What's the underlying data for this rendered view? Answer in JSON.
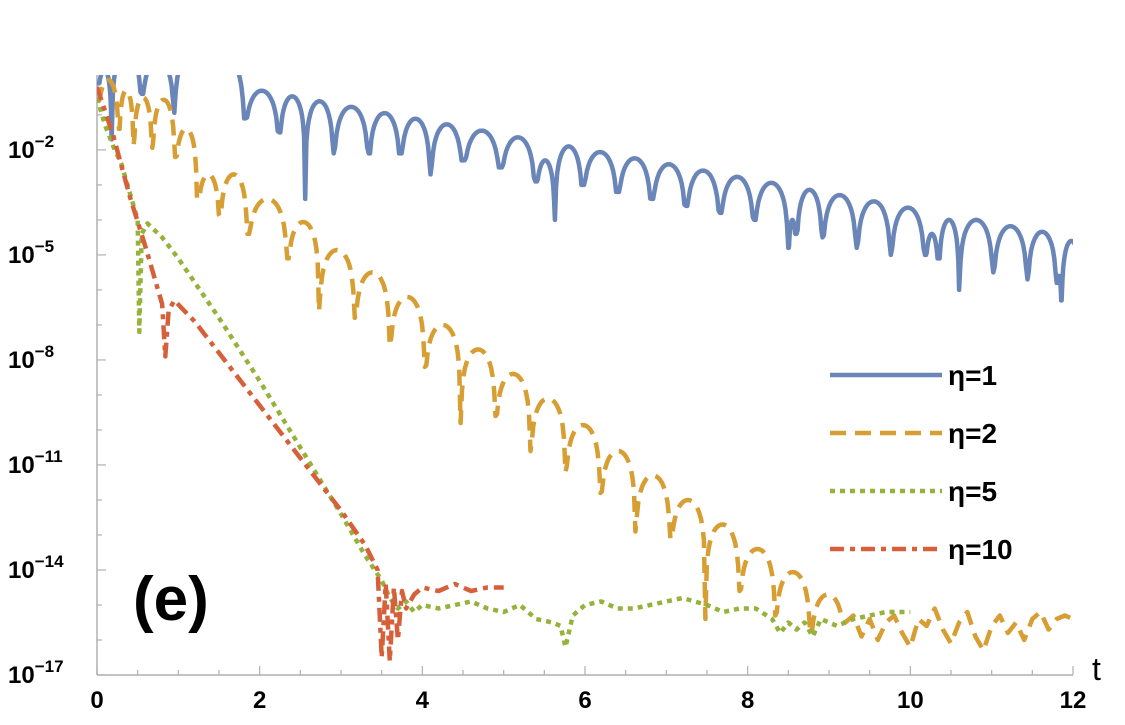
{
  "chart_data": {
    "type": "line",
    "panel_label": "(e)",
    "xlabel": "t",
    "ylabel": "",
    "xlim": [
      0,
      12
    ],
    "ylim_log10": [
      -17,
      0.14
    ],
    "yscale": "log",
    "x_ticks": [
      "0",
      "2",
      "4",
      "6",
      "8",
      "10",
      "12"
    ],
    "y_ticks": [
      {
        "base": "10",
        "exp": "−2",
        "log10": -2
      },
      {
        "base": "10",
        "exp": "−5",
        "log10": -5
      },
      {
        "base": "10",
        "exp": "−8",
        "log10": -8
      },
      {
        "base": "10",
        "exp": "−11",
        "log10": -11
      },
      {
        "base": "10",
        "exp": "−14",
        "log10": -14
      },
      {
        "base": "10",
        "exp": "−17",
        "log10": -17
      }
    ],
    "legend_position": "right",
    "series": [
      {
        "name": "η=1",
        "color": "#6a86b8",
        "style": "solid",
        "arcs": {
          "dips": [
            0,
            0.18,
            0.55,
            0.95,
            1.38,
            1.81,
            2.24,
            2.56,
            2.91,
            3.34,
            3.73,
            4.1,
            4.5,
            4.96,
            5.39,
            5.63,
            5.97,
            6.4,
            6.82,
            7.24,
            7.66,
            8.08,
            8.5,
            8.6,
            8.92,
            9.34,
            9.76,
            10.18,
            10.35,
            10.6,
            11.02,
            11.44,
            11.8,
            11.86,
            12.1
          ],
          "dip_values": [
            -0.1,
            -1.7,
            -0.4,
            -0.94,
            0.5,
            -1.1,
            -1.5,
            -3.4,
            -2.1,
            -2.1,
            -2.1,
            -2.7,
            -2.3,
            -2.5,
            -2.9,
            -4.0,
            -3.0,
            -3.2,
            -3.4,
            -3.6,
            -3.8,
            -4.0,
            -4.8,
            -4.4,
            -4.5,
            -4.8,
            -5.0,
            -5.0,
            -5.1,
            -6.0,
            -5.5,
            -5.7,
            -5.8,
            -6.3,
            -5.5
          ],
          "peaks": [
            0.3,
            0.8,
            0.6,
            0.8,
            0.6,
            -0.31,
            -0.47,
            -0.61,
            -0.77,
            -0.95,
            -1.11,
            -1.27,
            -1.45,
            -1.64,
            -2.3,
            -1.9,
            -2.06,
            -2.24,
            -2.41,
            -2.59,
            -2.77,
            -2.94,
            -4.0,
            -3.14,
            -3.29,
            -3.47,
            -3.65,
            -4.4,
            -4.0,
            -4.0,
            -4.18,
            -4.34,
            -5.6,
            -4.6
          ]
        },
        "tail": []
      },
      {
        "name": "η=2",
        "color": "#d69e33",
        "style": "dashed",
        "arcs": {
          "dips": [
            0,
            0.27,
            0.45,
            0.68,
            0.96,
            1.23,
            1.51,
            1.85,
            2.34,
            2.73,
            3.17,
            3.6,
            4.03,
            4.47,
            4.9,
            5.33,
            5.76,
            6.19,
            6.62,
            7.05,
            7.48,
            7.9,
            8.34,
            8.77,
            9.2
          ],
          "dip_values": [
            -0.6,
            -1.4,
            -1.86,
            -1.94,
            -2.2,
            -3.4,
            -3.9,
            -4.4,
            -5.1,
            -6.6,
            -6.8,
            -7.6,
            -8.2,
            -9.8,
            -9.6,
            -10.6,
            -11.2,
            -11.8,
            -12.9,
            -13.1,
            -15.4,
            -14.6,
            -15.3,
            -15.8,
            -15.5
          ],
          "peaks": [
            0.0,
            -0.3,
            -0.5,
            -0.57,
            -1.4,
            -2.7,
            -2.7,
            -3.4,
            -4.06,
            -4.86,
            -5.5,
            -6.2,
            -7.0,
            -7.7,
            -8.4,
            -9.1,
            -9.86,
            -10.6,
            -11.3,
            -12.0,
            -12.7,
            -13.4,
            -14.06,
            -14.7
          ]
        },
        "tail": [
          [
            9.3,
            -15.3
          ],
          [
            9.4,
            -15.9
          ],
          [
            9.5,
            -15.4
          ],
          [
            9.6,
            -16.0
          ],
          [
            9.7,
            -15.5
          ],
          [
            9.8,
            -15.3
          ],
          [
            9.9,
            -15.8
          ],
          [
            10.0,
            -16.2
          ],
          [
            10.1,
            -15.4
          ],
          [
            10.2,
            -15.6
          ],
          [
            10.3,
            -15.1
          ],
          [
            10.4,
            -15.7
          ],
          [
            10.5,
            -16.1
          ],
          [
            10.6,
            -15.5
          ],
          [
            10.7,
            -15.2
          ],
          [
            10.8,
            -15.9
          ],
          [
            10.9,
            -16.3
          ],
          [
            11.0,
            -15.6
          ],
          [
            11.1,
            -15.3
          ],
          [
            11.2,
            -15.8
          ],
          [
            11.3,
            -15.5
          ],
          [
            11.4,
            -16.0
          ],
          [
            11.5,
            -15.4
          ],
          [
            11.6,
            -15.2
          ],
          [
            11.7,
            -15.7
          ],
          [
            11.8,
            -15.4
          ],
          [
            11.9,
            -15.3
          ],
          [
            12.0,
            -15.4
          ]
        ]
      },
      {
        "name": "η=5",
        "color": "#95b23a",
        "style": "dotted",
        "points": [
          [
            0,
            -0.5
          ],
          [
            0.1,
            -1.3
          ],
          [
            0.2,
            -1.9
          ],
          [
            0.3,
            -2.4
          ],
          [
            0.4,
            -3.2
          ],
          [
            0.5,
            -4.0
          ],
          [
            0.52,
            -7.2
          ],
          [
            0.55,
            -4.4
          ],
          [
            0.62,
            -4.1
          ],
          [
            0.8,
            -4.5
          ],
          [
            1.0,
            -5.1
          ],
          [
            1.5,
            -6.8
          ],
          [
            2.0,
            -8.6
          ],
          [
            2.5,
            -10.5
          ],
          [
            3.0,
            -12.4
          ],
          [
            3.3,
            -13.6
          ],
          [
            3.5,
            -14.3
          ],
          [
            3.6,
            -14.8
          ],
          [
            3.7,
            -15.1
          ],
          [
            3.8,
            -14.9
          ],
          [
            3.9,
            -15.2
          ],
          [
            4.0,
            -15.0
          ],
          [
            4.2,
            -15.1
          ],
          [
            4.4,
            -15.0
          ],
          [
            4.6,
            -14.9
          ],
          [
            4.8,
            -15.1
          ],
          [
            5.0,
            -15.2
          ],
          [
            5.2,
            -15.0
          ],
          [
            5.4,
            -15.4
          ],
          [
            5.6,
            -15.5
          ],
          [
            5.7,
            -15.6
          ],
          [
            5.76,
            -16.2
          ],
          [
            5.85,
            -15.3
          ],
          [
            6.0,
            -15.0
          ],
          [
            6.2,
            -14.9
          ],
          [
            6.4,
            -15.1
          ],
          [
            6.6,
            -15.1
          ],
          [
            6.8,
            -15.0
          ],
          [
            7.0,
            -14.9
          ],
          [
            7.2,
            -14.8
          ],
          [
            7.35,
            -14.9
          ],
          [
            7.5,
            -15.0
          ],
          [
            7.7,
            -15.2
          ],
          [
            7.9,
            -15.1
          ],
          [
            8.1,
            -15.1
          ],
          [
            8.3,
            -15.4
          ],
          [
            8.4,
            -15.8
          ],
          [
            8.5,
            -15.5
          ],
          [
            8.6,
            -15.7
          ],
          [
            8.7,
            -15.5
          ],
          [
            8.8,
            -15.9
          ],
          [
            8.9,
            -15.4
          ],
          [
            9.1,
            -15.6
          ],
          [
            9.3,
            -15.4
          ],
          [
            9.5,
            -15.3
          ],
          [
            9.7,
            -15.2
          ],
          [
            10.0,
            -15.2
          ]
        ]
      },
      {
        "name": "η=10",
        "color": "#d5603a",
        "style": "dashdot",
        "points": [
          [
            0,
            -0.2
          ],
          [
            0.2,
            -1.6
          ],
          [
            0.4,
            -3.3
          ],
          [
            0.6,
            -4.8
          ],
          [
            0.8,
            -6.4
          ],
          [
            0.84,
            -7.9
          ],
          [
            0.88,
            -6.6
          ],
          [
            0.95,
            -6.3
          ],
          [
            1.2,
            -6.9
          ],
          [
            1.5,
            -7.8
          ],
          [
            2.0,
            -9.3
          ],
          [
            2.5,
            -10.8
          ],
          [
            3.0,
            -12.3
          ],
          [
            3.3,
            -13.3
          ],
          [
            3.45,
            -14.0
          ],
          [
            3.5,
            -16.5
          ],
          [
            3.55,
            -14.4
          ],
          [
            3.6,
            -16.6
          ],
          [
            3.65,
            -14.5
          ],
          [
            3.7,
            -16.0
          ],
          [
            3.75,
            -14.6
          ],
          [
            3.8,
            -15.1
          ],
          [
            3.9,
            -14.7
          ],
          [
            4.0,
            -14.5
          ],
          [
            4.2,
            -14.6
          ],
          [
            4.4,
            -14.4
          ],
          [
            4.6,
            -14.6
          ],
          [
            4.8,
            -14.5
          ],
          [
            5.0,
            -14.5
          ]
        ]
      }
    ]
  }
}
